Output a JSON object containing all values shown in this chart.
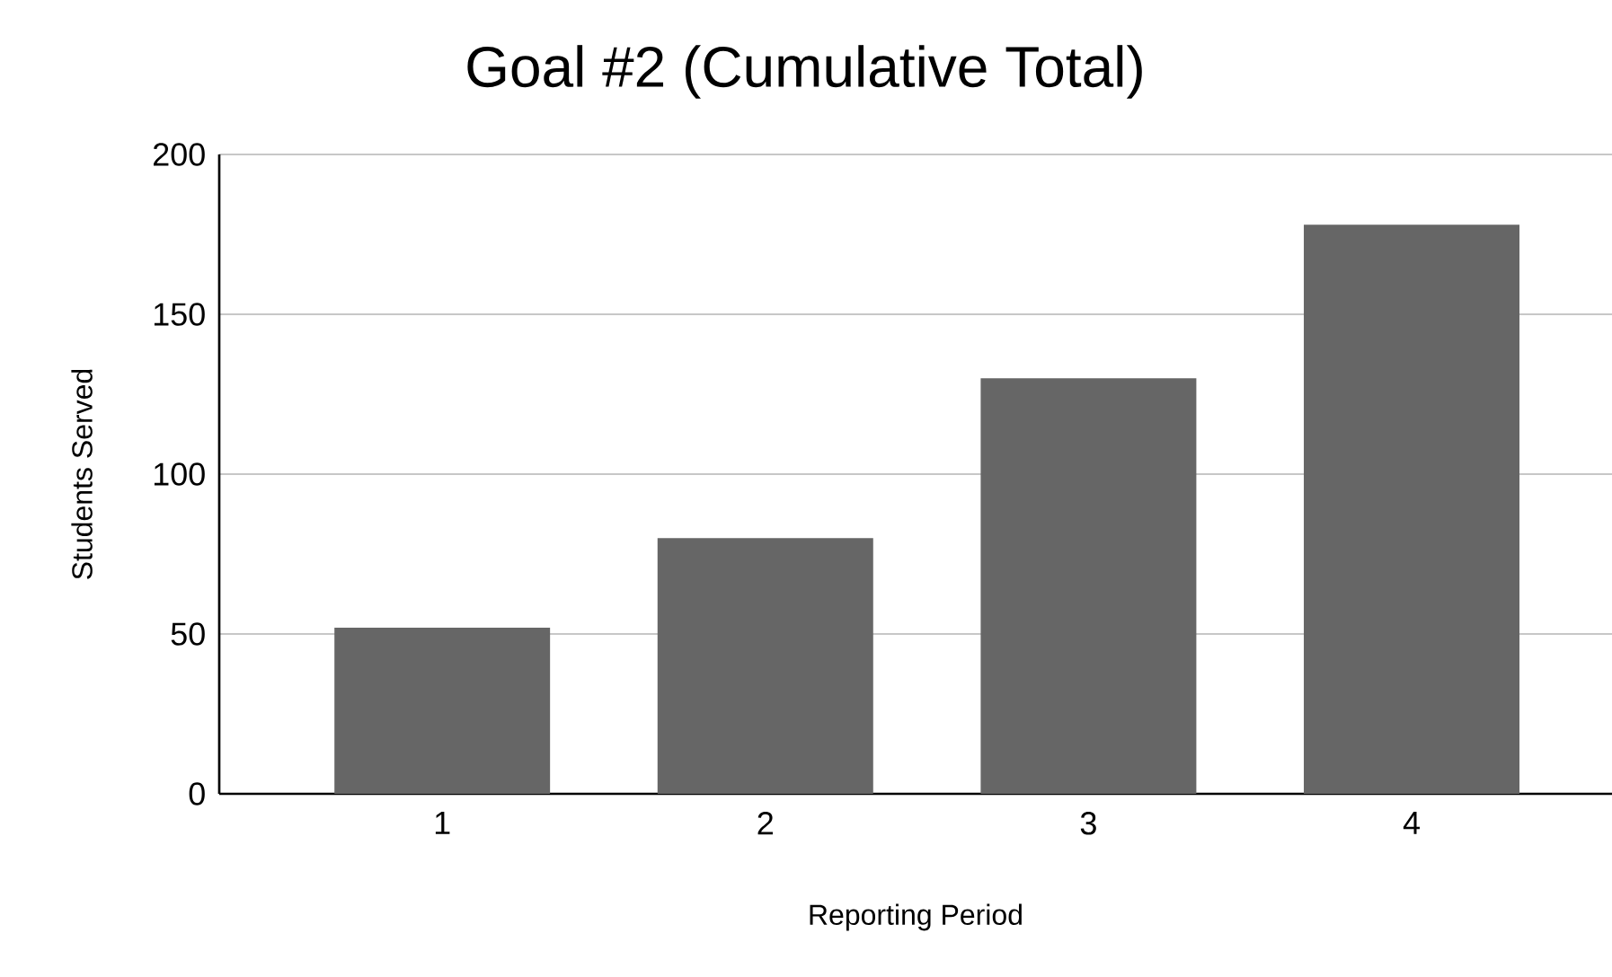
{
  "chart_data": {
    "type": "bar",
    "title": "Goal #2 (Cumulative Total)",
    "xlabel": "Reporting Period",
    "ylabel": "Students Served",
    "categories": [
      "1",
      "2",
      "3",
      "4"
    ],
    "values": [
      52,
      80,
      130,
      178
    ],
    "color": "#666666",
    "ylim": [
      0,
      200
    ],
    "yticks": [
      0,
      50,
      100,
      150,
      200
    ],
    "grid": "y"
  }
}
